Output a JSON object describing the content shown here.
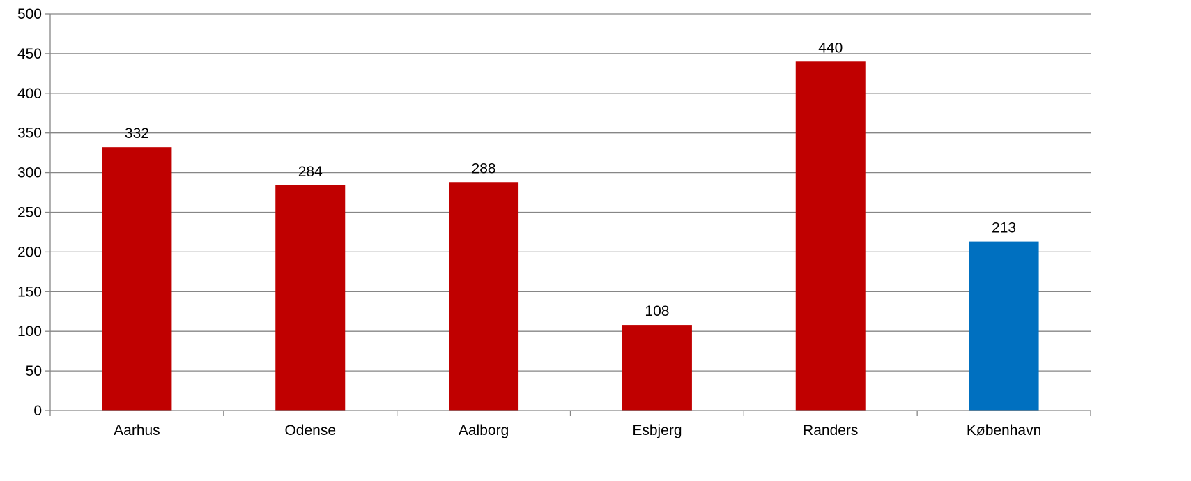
{
  "chart_data": {
    "type": "bar",
    "title": "",
    "xlabel": "",
    "ylabel": "",
    "categories": [
      "Aarhus",
      "Odense",
      "Aalborg",
      "Esbjerg",
      "Randers",
      "København"
    ],
    "values": [
      332,
      284,
      288,
      108,
      440,
      213
    ],
    "colors": [
      "#c00000",
      "#c00000",
      "#c00000",
      "#c00000",
      "#c00000",
      "#0070c0"
    ],
    "data_labels": [
      "332",
      "284",
      "288",
      "108",
      "440",
      "213"
    ],
    "ylim": [
      0,
      500
    ],
    "yticks": [
      0,
      50,
      100,
      150,
      200,
      250,
      300,
      350,
      400,
      450,
      500
    ],
    "grid": true,
    "legend": "none"
  }
}
